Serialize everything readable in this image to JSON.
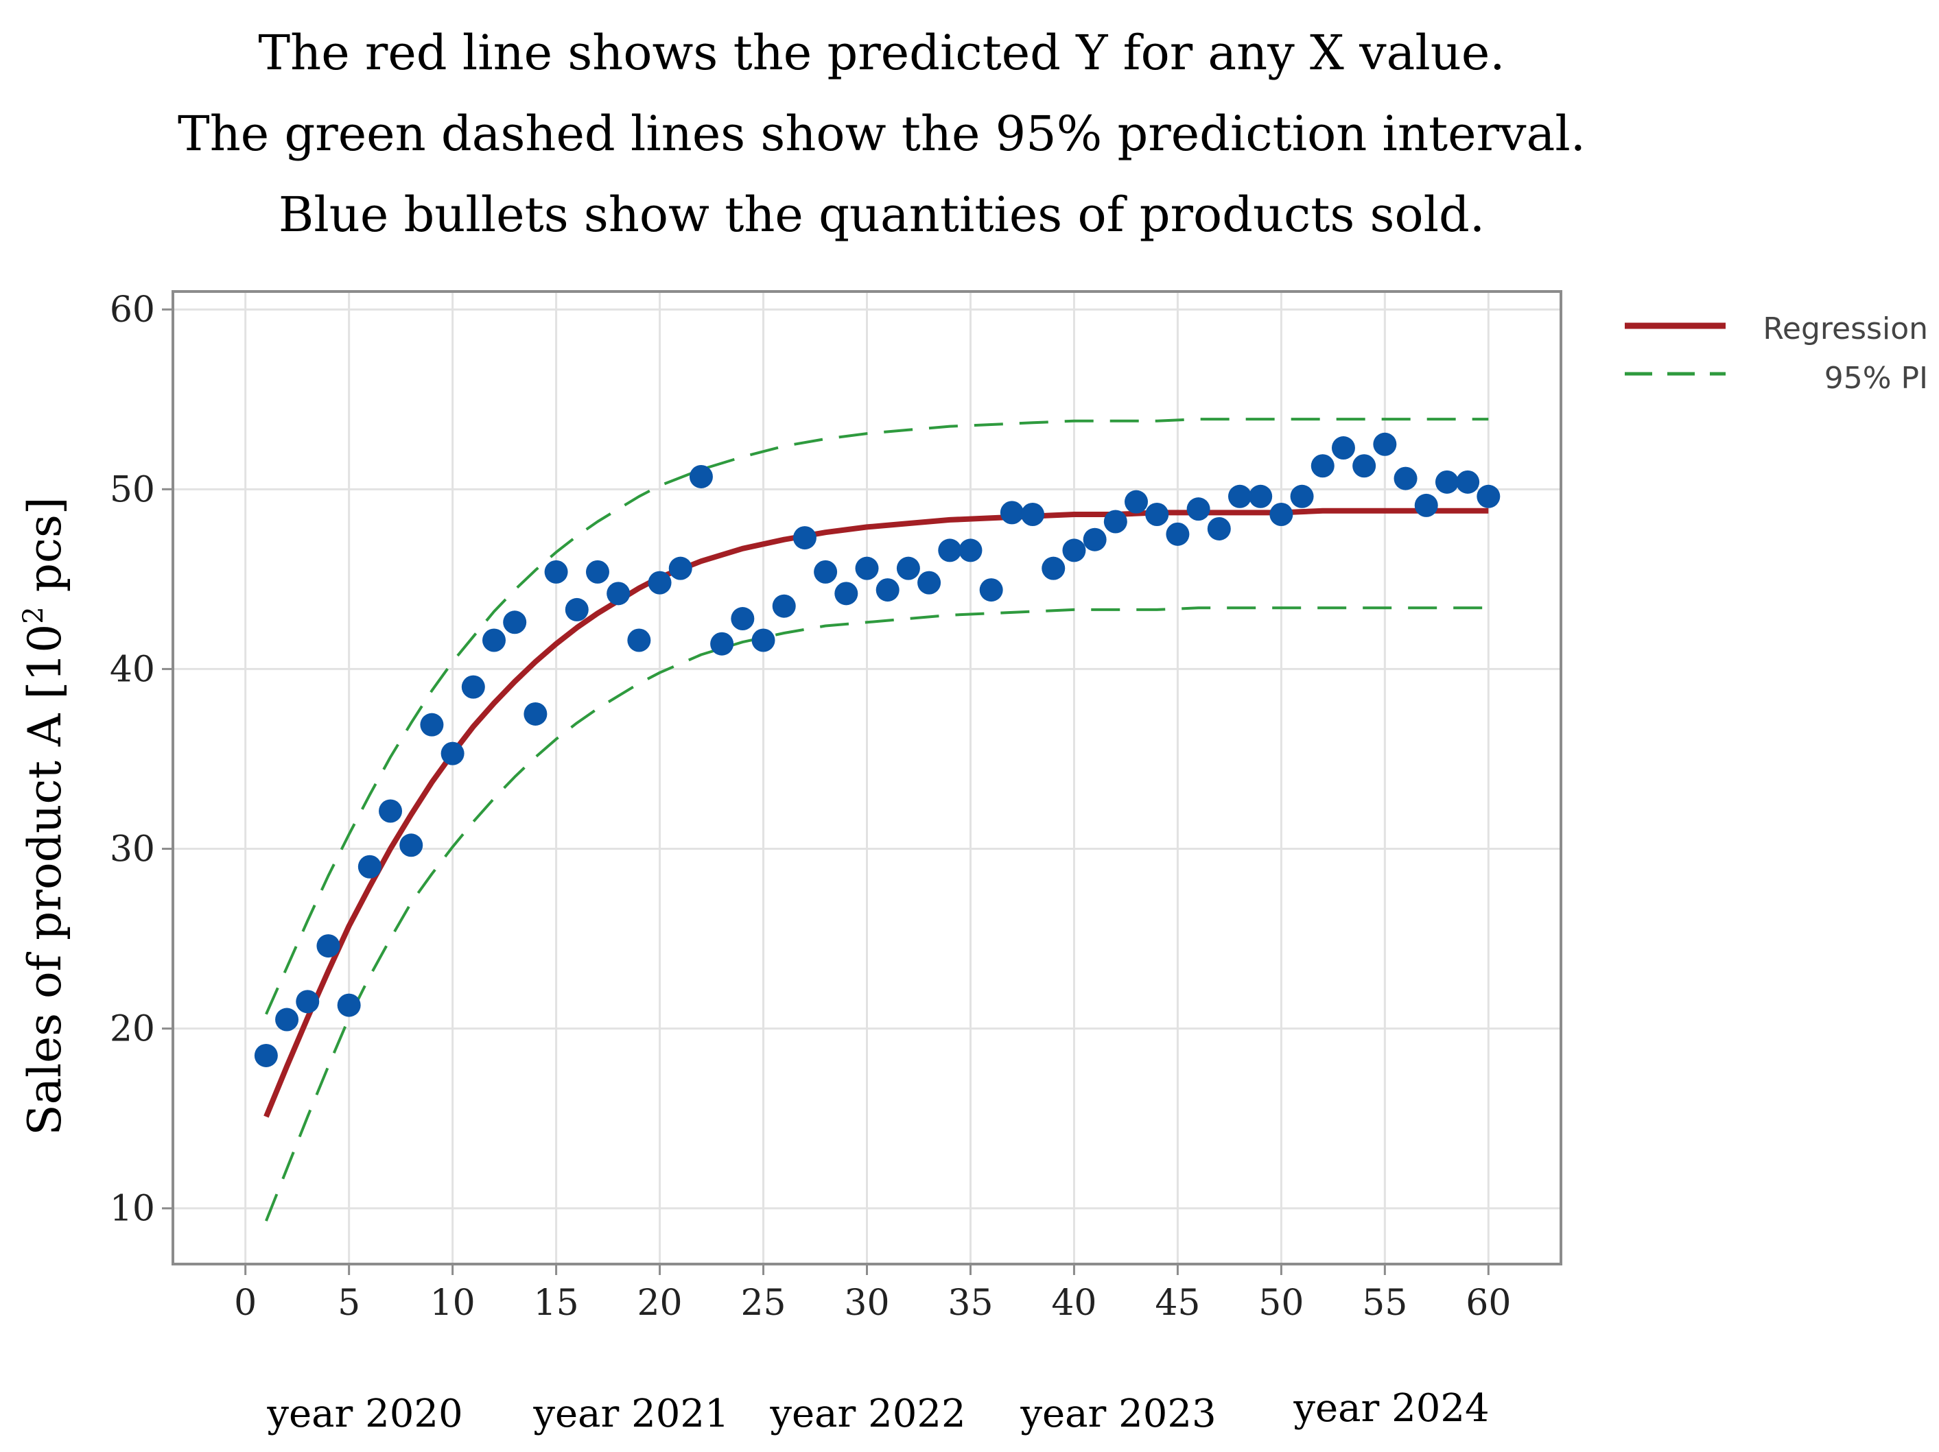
{
  "titles": {
    "line1": "The red line shows the predicted Y for any  X value.",
    "line2": "The green dashed lines show the 95% prediction interval.",
    "line3": "Blue bullets show the quantities of products sold."
  },
  "legend": {
    "regression": "Regression",
    "pi": "95% PI"
  },
  "years": [
    "year 2020",
    "year 2021",
    "year 2022",
    "year 2023",
    "year 2024"
  ],
  "colors": {
    "regression": "#a31f24",
    "pi": "#2e9a3e",
    "points": "#0a55a8",
    "grid": "#e2e2e2",
    "frame": "#8c8c8c"
  },
  "chart_data": {
    "type": "scatter",
    "title": "",
    "xlabel": "",
    "ylabel": "Sales of product A [10² pcs]",
    "ylabel_parts": {
      "before": "Sales of product A [10",
      "sup": "2",
      "after": " pcs]"
    },
    "xlim": [
      -3.5,
      63.5
    ],
    "ylim": [
      6.9,
      61
    ],
    "xticks": [
      0,
      5,
      10,
      15,
      20,
      25,
      30,
      35,
      40,
      45,
      50,
      55,
      60
    ],
    "yticks": [
      10,
      20,
      30,
      40,
      50,
      60
    ],
    "grid": true,
    "legend_position": "top-right outside",
    "series": [
      {
        "name": "Sales",
        "kind": "points",
        "x": [
          1,
          2,
          3,
          4,
          5,
          6,
          7,
          8,
          9,
          10,
          11,
          12,
          13,
          14,
          15,
          16,
          17,
          18,
          19,
          20,
          21,
          22,
          23,
          24,
          25,
          26,
          27,
          28,
          29,
          30,
          31,
          32,
          33,
          34,
          35,
          36,
          37,
          38,
          39,
          40,
          41,
          42,
          43,
          44,
          45,
          46,
          47,
          48,
          49,
          50,
          51,
          52,
          53,
          54,
          55,
          56,
          57,
          58,
          59,
          60
        ],
        "y": [
          18.5,
          20.5,
          21.5,
          24.6,
          21.3,
          29.0,
          32.1,
          30.2,
          36.9,
          35.3,
          39.0,
          41.6,
          42.6,
          37.5,
          45.4,
          43.3,
          45.4,
          44.2,
          41.6,
          44.8,
          45.6,
          50.7,
          41.4,
          42.8,
          41.6,
          43.5,
          47.3,
          45.4,
          44.2,
          45.6,
          44.4,
          45.6,
          44.8,
          46.6,
          46.6,
          44.4,
          48.7,
          48.6,
          45.6,
          46.6,
          47.2,
          48.2,
          49.3,
          48.6,
          47.5,
          48.9,
          47.8,
          49.6,
          49.6,
          48.6,
          49.6,
          51.3,
          52.3,
          51.3,
          52.5,
          50.6,
          49.1,
          50.4,
          50.4,
          49.6
        ]
      },
      {
        "name": "Regression",
        "kind": "curve",
        "x": [
          1,
          2,
          3,
          4,
          5,
          6,
          7,
          8,
          9,
          10,
          11,
          12,
          13,
          14,
          15,
          16,
          17,
          18,
          19,
          20,
          22,
          24,
          26,
          28,
          30,
          32,
          34,
          36,
          38,
          40,
          42,
          44,
          46,
          48,
          50,
          52,
          54,
          56,
          58,
          60
        ],
        "y": [
          15.1,
          17.9,
          20.6,
          23.2,
          25.7,
          27.9,
          30.0,
          31.9,
          33.7,
          35.3,
          36.8,
          38.1,
          39.3,
          40.4,
          41.4,
          42.3,
          43.1,
          43.8,
          44.5,
          45.1,
          46.0,
          46.7,
          47.2,
          47.6,
          47.9,
          48.1,
          48.3,
          48.4,
          48.5,
          48.6,
          48.6,
          48.7,
          48.7,
          48.7,
          48.7,
          48.8,
          48.8,
          48.8,
          48.8,
          48.8
        ]
      },
      {
        "name": "95% PI upper",
        "kind": "dashed",
        "x": [
          1,
          2,
          3,
          4,
          5,
          6,
          7,
          8,
          9,
          10,
          11,
          12,
          13,
          14,
          15,
          16,
          17,
          18,
          19,
          20,
          22,
          24,
          26,
          28,
          30,
          32,
          34,
          36,
          38,
          40,
          42,
          44,
          46,
          48,
          50,
          52,
          54,
          56,
          58,
          60
        ],
        "y": [
          20.8,
          23.4,
          26.0,
          28.5,
          30.8,
          33.0,
          35.1,
          37.0,
          38.8,
          40.4,
          41.8,
          43.2,
          44.4,
          45.5,
          46.5,
          47.4,
          48.2,
          48.9,
          49.6,
          50.2,
          51.1,
          51.8,
          52.4,
          52.8,
          53.1,
          53.3,
          53.5,
          53.6,
          53.7,
          53.8,
          53.8,
          53.8,
          53.9,
          53.9,
          53.9,
          53.9,
          53.9,
          53.9,
          53.9,
          53.9
        ]
      },
      {
        "name": "95% PI lower",
        "kind": "dashed",
        "x": [
          1,
          2,
          3,
          4,
          5,
          6,
          7,
          8,
          9,
          10,
          11,
          12,
          13,
          14,
          15,
          16,
          17,
          18,
          19,
          20,
          22,
          24,
          26,
          28,
          30,
          32,
          34,
          36,
          38,
          40,
          42,
          44,
          46,
          48,
          50,
          52,
          54,
          56,
          58,
          60
        ],
        "y": [
          9.3,
          12.2,
          15.1,
          17.9,
          20.6,
          22.9,
          25.0,
          27.0,
          28.6,
          30.1,
          31.5,
          32.8,
          34.0,
          35.1,
          36.1,
          37.0,
          37.8,
          38.5,
          39.2,
          39.8,
          40.8,
          41.5,
          42.0,
          42.4,
          42.6,
          42.8,
          43.0,
          43.1,
          43.2,
          43.3,
          43.3,
          43.3,
          43.4,
          43.4,
          43.4,
          43.4,
          43.4,
          43.4,
          43.4,
          43.4
        ]
      }
    ]
  }
}
